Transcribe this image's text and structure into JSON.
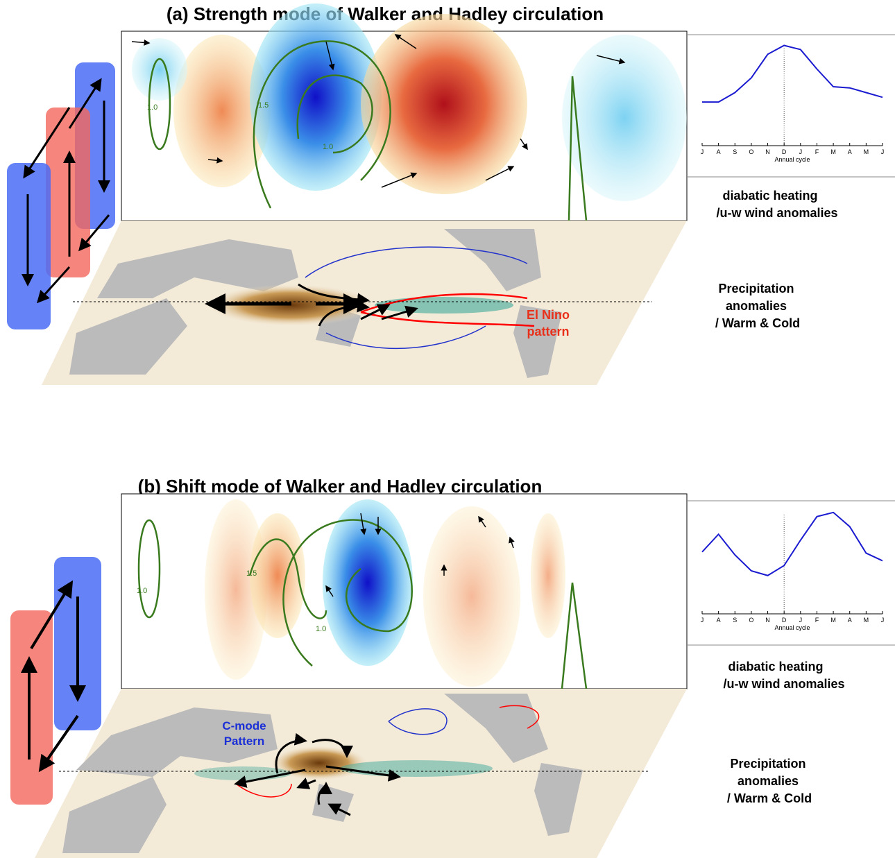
{
  "panels": [
    {
      "title": "(a) Strength mode of Walker and Hadley circulation",
      "upper_label": [
        "diabatic heating",
        "/u-w wind anomalies"
      ],
      "lower_label": [
        "Precipitation",
        "anomalies",
        "/ Warm & Cold"
      ],
      "annotation": [
        "El Nino",
        "pattern"
      ],
      "contour_labels": [
        "1.0",
        "1.5",
        "1.0"
      ],
      "annual_cycle": {
        "type": "line",
        "xlabel": "Annual cycle",
        "categories": [
          "J",
          "A",
          "S",
          "O",
          "N",
          "D",
          "J",
          "F",
          "M",
          "A",
          "M",
          "J"
        ],
        "values": [
          3.7,
          3.7,
          4.5,
          5.75,
          7.75,
          8.5,
          8.15,
          6.5,
          5,
          4.9,
          4.5,
          4.1
        ]
      }
    },
    {
      "title": "(b) Shift mode of Walker and Hadley circulation",
      "upper_label": [
        "diabatic heating",
        "/u-w wind anomalies"
      ],
      "lower_label": [
        "Precipitation",
        "anomalies",
        "/ Warm & Cold"
      ],
      "annotation": [
        "C-mode",
        "Pattern"
      ],
      "contour_labels": [
        "1.0",
        "1.5",
        "1.0"
      ],
      "annual_cycle": {
        "type": "line",
        "xlabel": "Annual cycle",
        "categories": [
          "J",
          "A",
          "S",
          "O",
          "N",
          "D",
          "J",
          "F",
          "M",
          "A",
          "M",
          "J"
        ],
        "values": [
          5.25,
          6.75,
          5,
          3.65,
          3.25,
          4.1,
          6.25,
          8.25,
          8.6,
          7.4,
          5.15,
          4.5
        ]
      }
    }
  ]
}
